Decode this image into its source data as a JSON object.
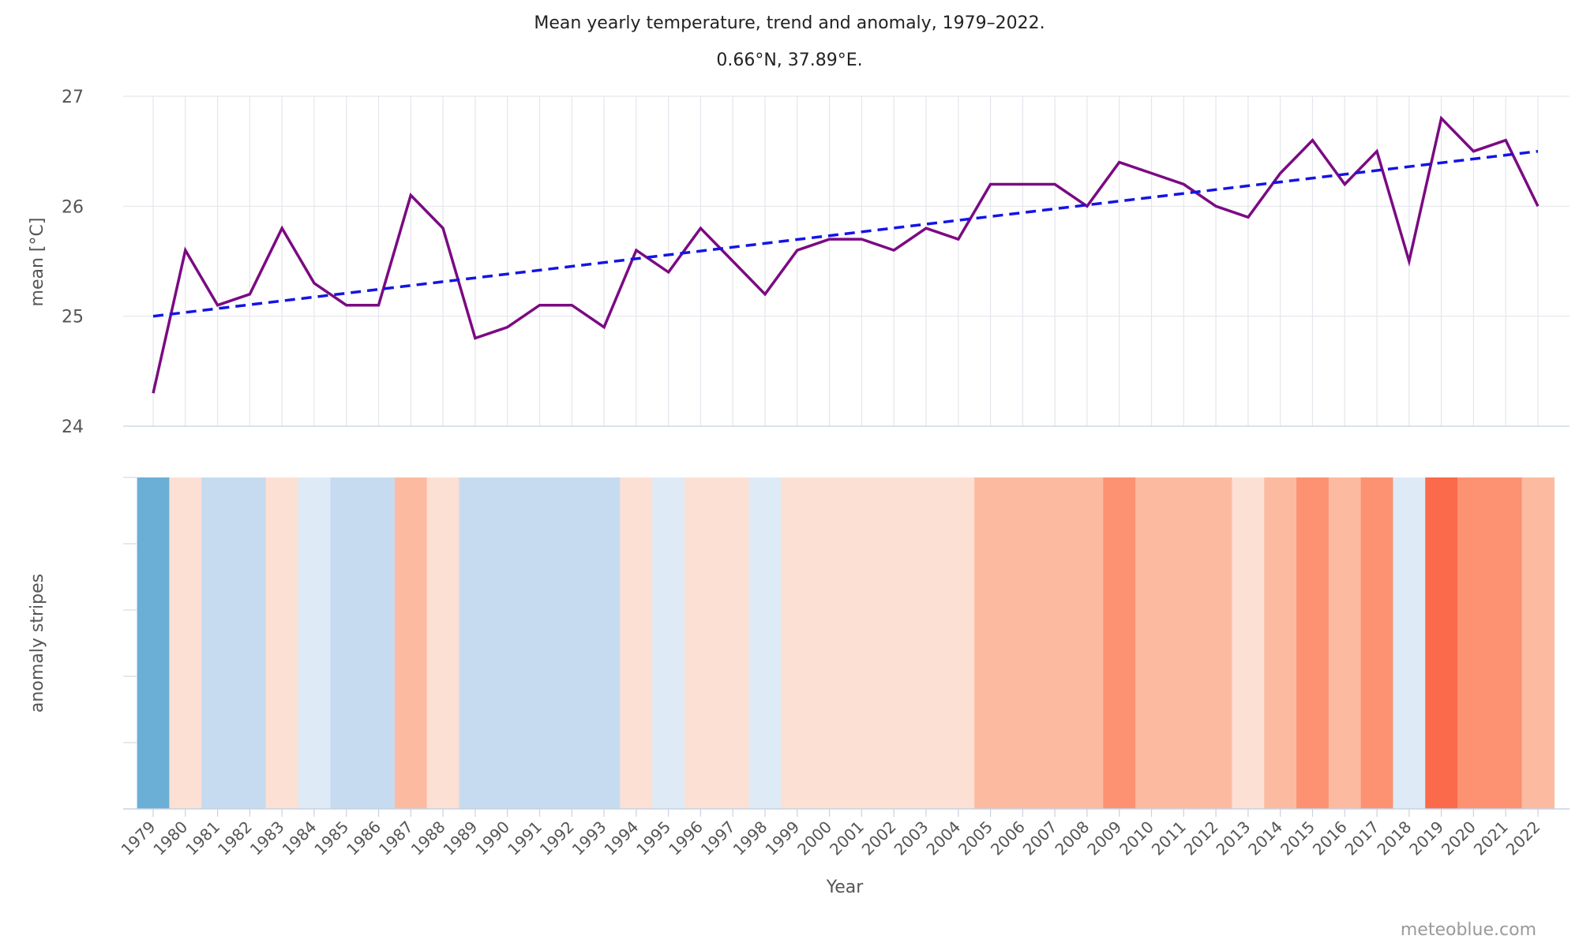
{
  "chart_data": {
    "type": "line",
    "title": "Mean yearly temperature, trend and anomaly, 1979–2022.",
    "subtitle": "0.66°N, 37.89°E.",
    "xlabel": "Year",
    "ylabel": "mean [°C]",
    "stripes_label": "anomaly stripes",
    "credit": "meteoblue.com",
    "ylim": [
      24,
      27
    ],
    "yticks": [
      24,
      25,
      26,
      27
    ],
    "x": [
      1979,
      1980,
      1981,
      1982,
      1983,
      1984,
      1985,
      1986,
      1987,
      1988,
      1989,
      1990,
      1991,
      1992,
      1993,
      1994,
      1995,
      1996,
      1997,
      1998,
      1999,
      2000,
      2001,
      2002,
      2003,
      2004,
      2005,
      2006,
      2007,
      2008,
      2009,
      2010,
      2011,
      2012,
      2013,
      2014,
      2015,
      2016,
      2017,
      2018,
      2019,
      2020,
      2021,
      2022
    ],
    "xtick_labels": [
      "1979",
      "1980",
      "1981",
      "1982",
      "1983",
      "1984",
      "1985",
      "1986",
      "1987",
      "1988",
      "1989",
      "1990",
      "1991",
      "1992",
      "1993",
      "1994",
      "1995",
      "1996",
      "1997",
      "1998",
      "1999",
      "2000",
      "2001",
      "2002",
      "2003",
      "2004",
      "2005",
      "2006",
      "2007",
      "2008",
      "2009",
      "2010",
      "2011",
      "2012",
      "2013",
      "2014",
      "2015",
      "2016",
      "2017",
      "2018",
      "2019",
      "2020",
      "2021",
      "2022"
    ],
    "series": [
      {
        "values": [
          24.3,
          25.6,
          25.1,
          25.2,
          25.8,
          25.3,
          25.1,
          25.1,
          26.1,
          25.8,
          24.8,
          24.9,
          25.1,
          25.1,
          24.9,
          25.6,
          25.4,
          25.8,
          25.5,
          25.2,
          25.6,
          25.7,
          25.7,
          25.6,
          25.8,
          25.7,
          26.2,
          26.2,
          26.2,
          26.0,
          26.4,
          26.3,
          26.2,
          26.0,
          25.9,
          26.3,
          26.6,
          26.2,
          26.5,
          25.5,
          26.8,
          26.5,
          26.6,
          26.0
        ],
        "color": "#7b0a82",
        "style": "solid"
      },
      {
        "values": [
          25.0,
          26.5
        ],
        "x": [
          1979,
          2022
        ],
        "color": "#1414e6",
        "style": "dashed"
      }
    ],
    "stripe_colors": [
      "#6baed6",
      "#fde0d4",
      "#c6dbef",
      "#c6dbef",
      "#fde0d4",
      "#deebf7",
      "#c6dbef",
      "#c6dbef",
      "#fcbba1",
      "#fde0d4",
      "#c6dbef",
      "#c6dbef",
      "#c6dbef",
      "#c6dbef",
      "#c6dbef",
      "#fde0d4",
      "#deebf7",
      "#fde0d4",
      "#fde0d4",
      "#deebf7",
      "#fde0d4",
      "#fde0d4",
      "#fde0d4",
      "#fde0d4",
      "#fde0d4",
      "#fde0d4",
      "#fcbba1",
      "#fcbba1",
      "#fcbba1",
      "#fcbba1",
      "#fc9272",
      "#fcbba1",
      "#fcbba1",
      "#fcbba1",
      "#fde0d4",
      "#fcbba1",
      "#fc9272",
      "#fcbba1",
      "#fc9272",
      "#deebf7",
      "#fb6a4a",
      "#fc9272",
      "#fc9272",
      "#fcbba1"
    ],
    "grid": true,
    "legend": "none"
  }
}
